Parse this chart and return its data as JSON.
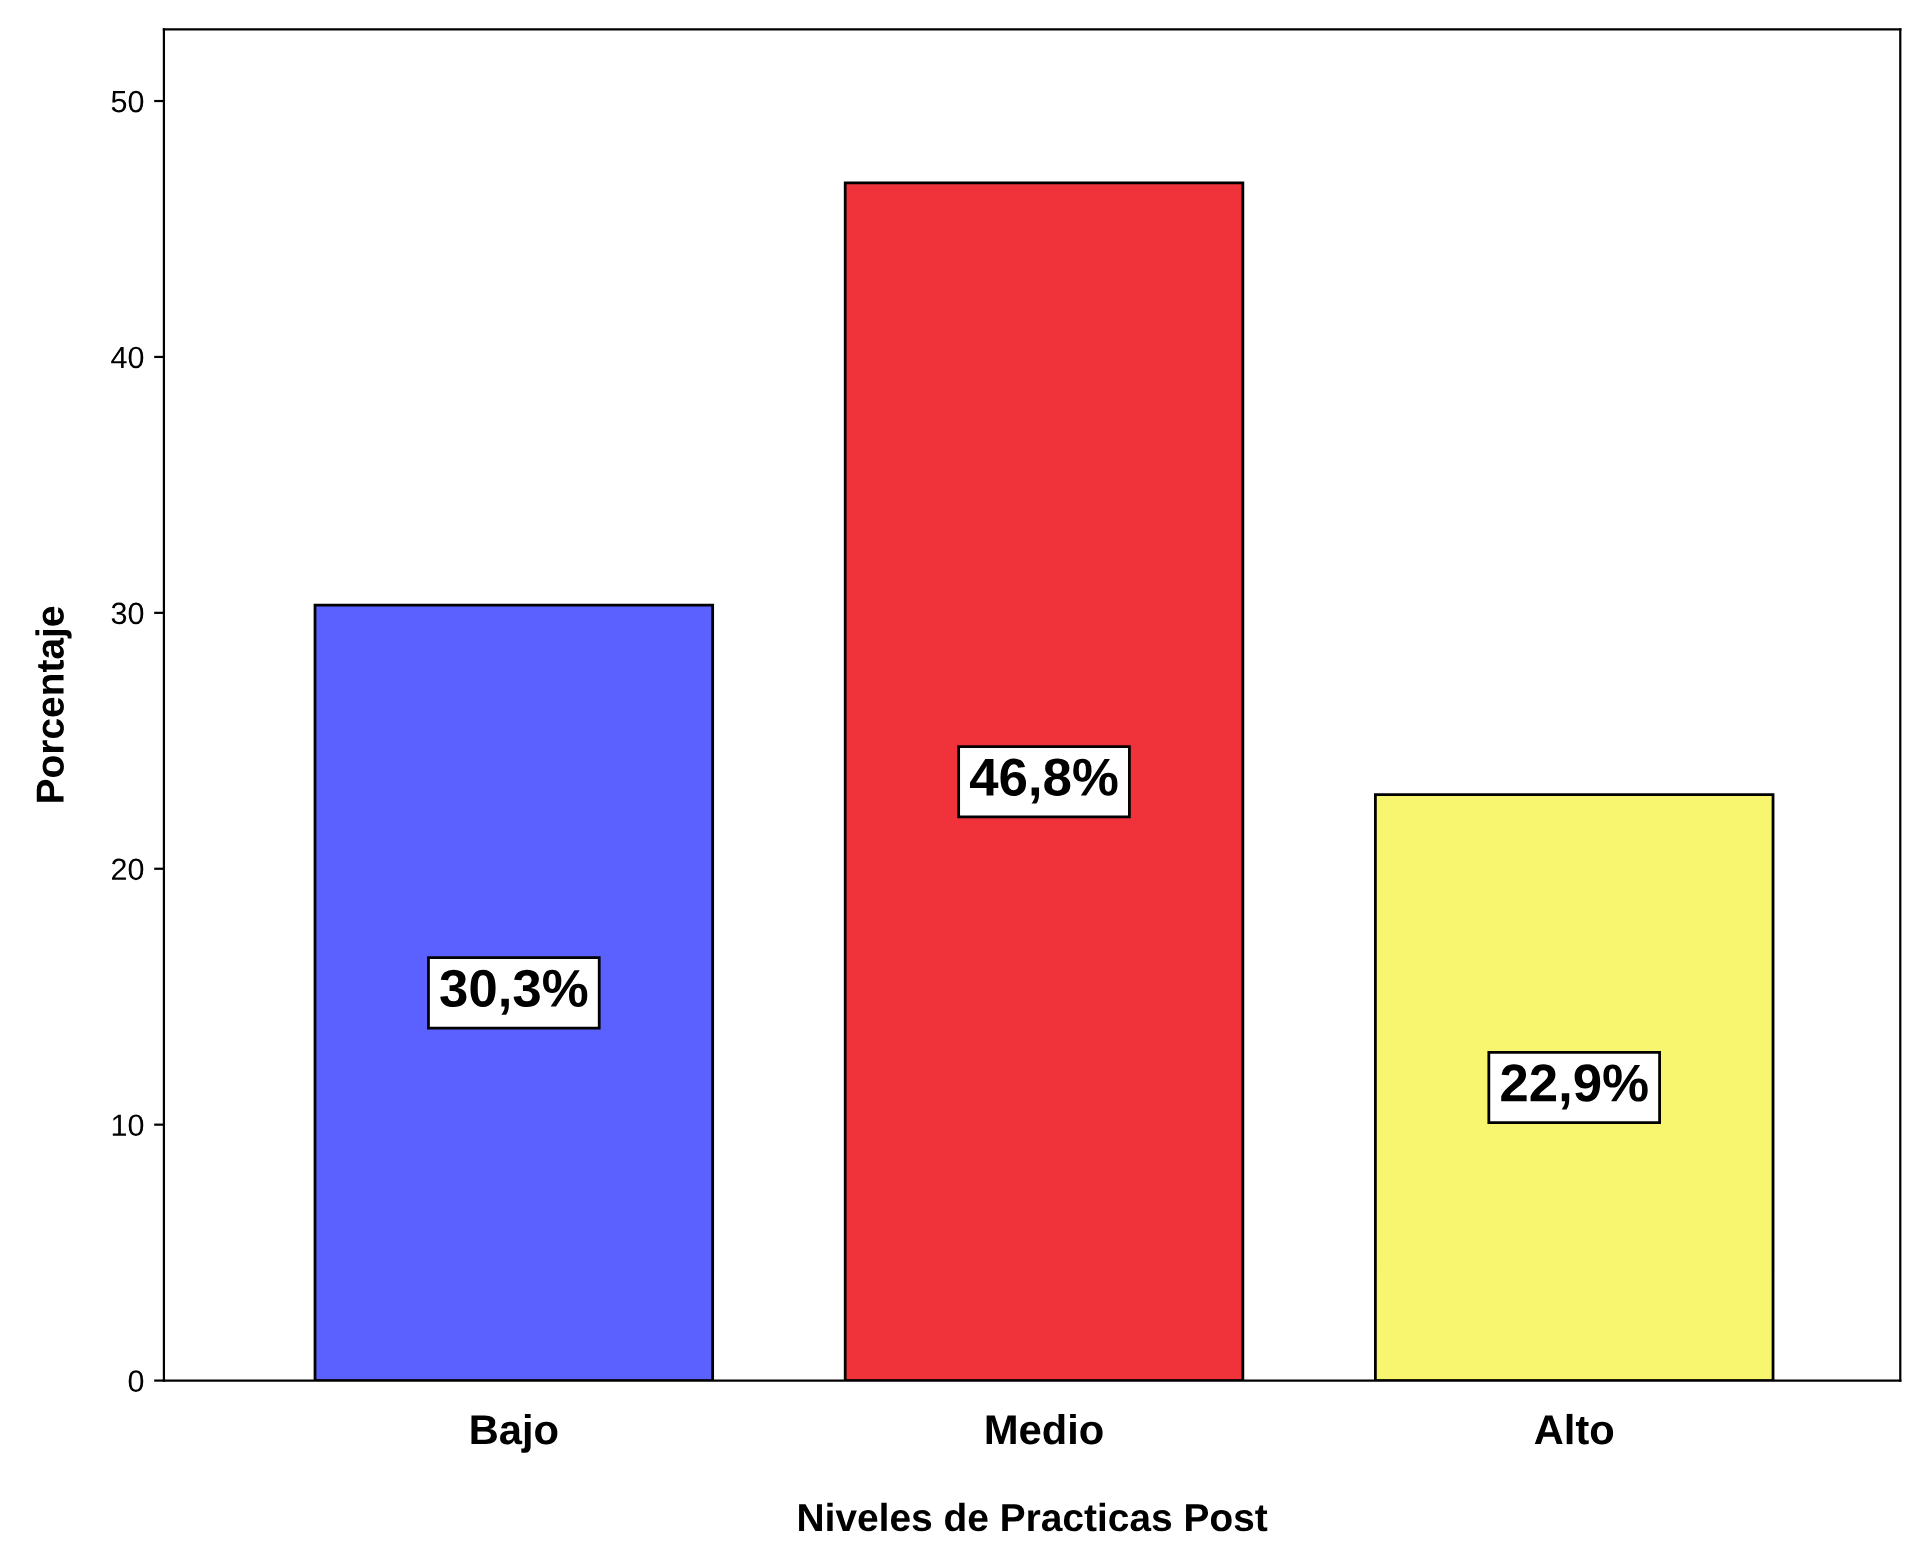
{
  "chart_data": {
    "type": "bar",
    "xlabel": "Niveles de Practicas Post",
    "ylabel": "Porcentaje",
    "categories": [
      "Bajo",
      "Medio",
      "Alto"
    ],
    "values": [
      30.3,
      46.8,
      22.9
    ],
    "colors": [
      "#5a61ff",
      "#f0323a",
      "#f8f56e"
    ],
    "value_labels": [
      "30,3%",
      "46,8%",
      "22,9%"
    ],
    "ylim": [
      0,
      52.8
    ],
    "yticks": [
      0,
      10,
      20,
      30,
      40,
      50
    ],
    "grid": false,
    "legend": false
  }
}
